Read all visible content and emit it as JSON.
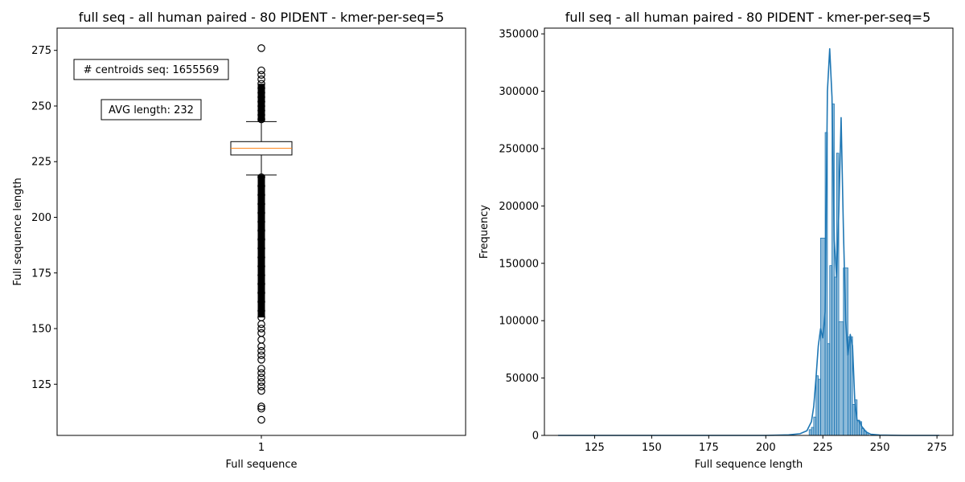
{
  "colors": {
    "box": "#000000",
    "median": "#ff7f0e",
    "flier": "#000000",
    "hist_fill": "#1f77b4",
    "hist_fill_opacity": 0.5,
    "kde_line": "#1f77b4"
  },
  "chart_data": [
    {
      "type": "box",
      "title": "full seq - all human paired - 80 PIDENT - kmer-per-seq=5",
      "xlabel": "Full sequence",
      "ylabel": "Full sequence length",
      "categories": [
        "1"
      ],
      "ylim": [
        102,
        285
      ],
      "yticks": [
        125,
        150,
        175,
        200,
        225,
        250,
        275
      ],
      "box": {
        "q1": 228,
        "median": 231,
        "q3": 234,
        "whisker_low": 219,
        "whisker_high": 243
      },
      "fliers_high": [
        244,
        246,
        248,
        250,
        252,
        254,
        256,
        258,
        260,
        262,
        264,
        266,
        276
      ],
      "fliers_low": [
        218,
        214,
        210,
        206,
        202,
        198,
        194,
        190,
        186,
        182,
        178,
        174,
        170,
        166,
        162,
        158,
        155,
        152,
        150,
        148,
        145,
        142,
        140,
        138,
        136,
        132,
        130,
        128,
        126,
        124,
        122,
        115,
        114,
        109
      ],
      "annotations": [
        "# centroids seq: 1655569",
        "AVG length: 232"
      ],
      "grid": false
    },
    {
      "type": "histogram",
      "title": "full seq - all human paired - 80 PIDENT - kmer-per-seq=5",
      "xlabel": "Full sequence length",
      "ylabel": "Frequency",
      "xlim": [
        103,
        282
      ],
      "ylim": [
        0,
        355000
      ],
      "xticks": [
        125,
        150,
        175,
        200,
        225,
        250,
        275
      ],
      "yticks": [
        0,
        50000,
        100000,
        150000,
        200000,
        250000,
        300000,
        350000
      ],
      "bins": [
        {
          "x0": 219,
          "x1": 220,
          "value": 5000
        },
        {
          "x0": 220,
          "x1": 221,
          "value": 7000
        },
        {
          "x0": 221,
          "x1": 222,
          "value": 16000
        },
        {
          "x0": 222,
          "x1": 223,
          "value": 52000
        },
        {
          "x0": 223,
          "x1": 224,
          "value": 49000
        },
        {
          "x0": 224,
          "x1": 226,
          "value": 172000
        },
        {
          "x0": 226,
          "x1": 227,
          "value": 264000
        },
        {
          "x0": 227,
          "x1": 228,
          "value": 80000
        },
        {
          "x0": 228,
          "x1": 229,
          "value": 148000
        },
        {
          "x0": 229,
          "x1": 230,
          "value": 289000
        },
        {
          "x0": 230,
          "x1": 231,
          "value": 138000
        },
        {
          "x0": 231,
          "x1": 232,
          "value": 246000
        },
        {
          "x0": 232,
          "x1": 234,
          "value": 99000
        },
        {
          "x0": 234,
          "x1": 236,
          "value": 146000
        },
        {
          "x0": 236,
          "x1": 237,
          "value": 86000
        },
        {
          "x0": 237,
          "x1": 238,
          "value": 86000
        },
        {
          "x0": 238,
          "x1": 239,
          "value": 27000
        },
        {
          "x0": 239,
          "x1": 240,
          "value": 31000
        },
        {
          "x0": 240,
          "x1": 241,
          "value": 12000
        },
        {
          "x0": 241,
          "x1": 242,
          "value": 12000
        },
        {
          "x0": 242,
          "x1": 243,
          "value": 6000
        },
        {
          "x0": 243,
          "x1": 244,
          "value": 4000
        },
        {
          "x0": 244,
          "x1": 245,
          "value": 2000
        }
      ],
      "kde": {
        "x": [
          109,
          200,
          210,
          215,
          218,
          220,
          221,
          222,
          223,
          224,
          225,
          226,
          227,
          228,
          229,
          230,
          231,
          232,
          233,
          234,
          235,
          236,
          237,
          238,
          239,
          240,
          241,
          242,
          244,
          246,
          250,
          260,
          276
        ],
        "y": [
          0,
          0,
          500,
          1500,
          4000,
          12000,
          25000,
          50000,
          78000,
          93000,
          85000,
          108000,
          300000,
          337000,
          295000,
          170000,
          138000,
          195000,
          277000,
          180000,
          100000,
          70000,
          88000,
          78000,
          30000,
          13000,
          13000,
          8000,
          3000,
          1000,
          300,
          0,
          0
        ]
      },
      "grid": false
    }
  ]
}
